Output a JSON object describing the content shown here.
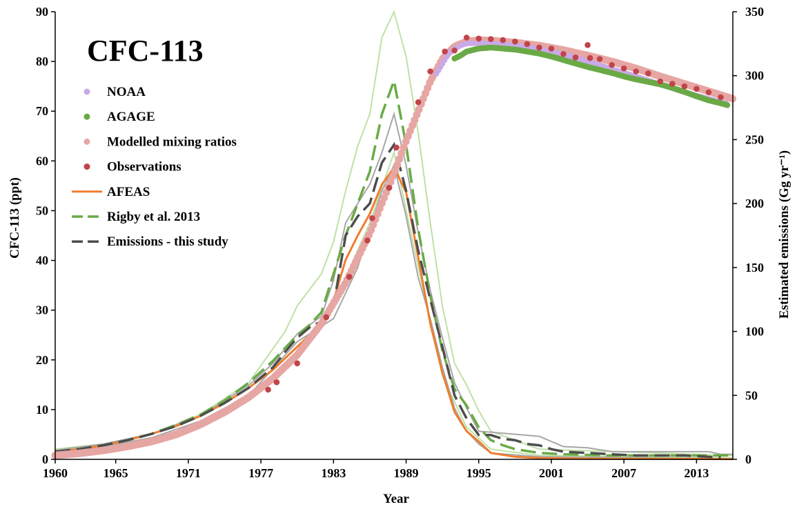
{
  "chart_data": {
    "type": "line",
    "title": "CFC-113",
    "xlabel": "Year",
    "ylabel_left": "CFC-113 (ppt)",
    "ylabel_right": "Estimated emissions (Gg yr⁻¹)",
    "xlim": [
      1960,
      2016
    ],
    "ylim_left": [
      0,
      90
    ],
    "ylim_right": [
      0,
      350
    ],
    "x_ticks": [
      "1960",
      "1965",
      "1971",
      "1977",
      "1983",
      "1989",
      "1995",
      "2001",
      "2007",
      "2013"
    ],
    "y_left_ticks": [
      "0",
      "10",
      "20",
      "30",
      "40",
      "50",
      "60",
      "70",
      "80",
      "90"
    ],
    "y_right_ticks": [
      "0",
      "50",
      "100",
      "150",
      "200",
      "250",
      "300",
      "350"
    ],
    "grid": false,
    "legend_position": "top-left",
    "legend": [
      {
        "key": "noaa",
        "label": "NOAA"
      },
      {
        "key": "agage",
        "label": "AGAGE"
      },
      {
        "key": "modelled",
        "label": "Modelled mixing ratios"
      },
      {
        "key": "obs",
        "label": "Observations"
      },
      {
        "key": "afeas",
        "label": "AFEAS"
      },
      {
        "key": "rigby",
        "label": "Rigby et al. 2013"
      },
      {
        "key": "this",
        "label": "Emissions - this study"
      }
    ],
    "colors": {
      "noaa": "#c9a9e6",
      "agage": "#6aaa46",
      "modelled": "#e6a6a3",
      "obs": "#c0454a",
      "afeas": "#ef7d2f",
      "rigby": "#6aaa46",
      "rigby_range": "#bfe0a6",
      "this": "#4d4d4d",
      "this_range": "#a6a6a6"
    },
    "series": [
      {
        "key": "modelled",
        "axis": "left",
        "x": [
          1960,
          1962,
          1964,
          1966,
          1968,
          1970,
          1972,
          1974,
          1976,
          1978,
          1980,
          1982,
          1984,
          1986,
          1988,
          1989,
          1990,
          1991,
          1992,
          1993,
          1994,
          1995,
          1996,
          1998,
          2000,
          2002,
          2004,
          2006,
          2008,
          2010,
          2012,
          2014,
          2016
        ],
        "values": [
          0.8,
          1.2,
          1.8,
          2.6,
          3.6,
          5.0,
          7.0,
          9.5,
          12.5,
          16.3,
          21.0,
          27.3,
          35.5,
          45.5,
          57.5,
          64.0,
          70.0,
          76.0,
          80.5,
          83.0,
          84.0,
          84.3,
          84.2,
          83.8,
          83.2,
          82.3,
          81.2,
          80.0,
          78.6,
          77.0,
          75.5,
          74.0,
          72.5
        ]
      },
      {
        "key": "noaa",
        "axis": "left",
        "x": [
          1991.5,
          1992,
          1992.5,
          1993,
          1993.5,
          1994,
          1995,
          1996,
          1998,
          2000,
          2002,
          2004,
          2006,
          2008,
          2010,
          2012,
          2014,
          2015.5
        ],
        "values": [
          77.5,
          79.5,
          81.5,
          82.5,
          83.2,
          83.6,
          83.7,
          83.6,
          83.2,
          82.5,
          81.4,
          80.0,
          78.5,
          77.0,
          75.4,
          73.8,
          72.5,
          71.5
        ]
      },
      {
        "key": "agage",
        "axis": "left",
        "x": [
          1993,
          1993.5,
          1994,
          1995,
          1996,
          1997,
          1998,
          1999,
          2000,
          2001,
          2002,
          2003,
          2004,
          2005,
          2006,
          2007,
          2008,
          2009,
          2010,
          2011,
          2012,
          2013,
          2014,
          2015,
          2015.6
        ],
        "values": [
          80.6,
          81.2,
          82.0,
          82.6,
          82.8,
          82.6,
          82.4,
          82.0,
          81.6,
          81.0,
          80.3,
          79.6,
          78.9,
          78.3,
          77.7,
          77.0,
          76.4,
          75.9,
          75.4,
          74.7,
          73.9,
          73.0,
          72.2,
          71.6,
          71.2
        ]
      },
      {
        "key": "obs",
        "axis": "left",
        "x": [
          1977.6,
          1978.3,
          1980,
          1982.4,
          1984.3,
          1985.8,
          1986.2,
          1987.6,
          1988.2,
          1990,
          1991,
          1992.2,
          1993,
          1994,
          1995,
          1996,
          1997,
          1998,
          1999,
          2000,
          2001,
          2002,
          2003,
          2004,
          2004.2,
          2005,
          2006,
          2007,
          2008,
          2009,
          2010,
          2011,
          2012,
          2013,
          2014,
          2015
        ],
        "values": [
          14,
          15.5,
          19.3,
          28.6,
          36.7,
          44,
          48.5,
          54.6,
          62.7,
          71.8,
          78,
          82,
          82.2,
          84.8,
          84.6,
          84.5,
          84.3,
          84.0,
          83.5,
          82.8,
          82.6,
          81.5,
          80.8,
          83.3,
          80.7,
          80.5,
          79.3,
          78.6,
          78.0,
          77.6,
          76.0,
          75.5,
          75.0,
          74.5,
          73.8,
          72.8
        ]
      },
      {
        "key": "afeas",
        "axis": "right",
        "x": [
          1960,
          1962,
          1964,
          1966,
          1968,
          1970,
          1972,
          1974,
          1976,
          1978,
          1980,
          1981,
          1982,
          1983,
          1984,
          1985,
          1986,
          1987,
          1988,
          1989,
          1990,
          1991,
          1992,
          1993,
          1994,
          1995,
          1996,
          1998,
          2000,
          2004,
          2010,
          2016
        ],
        "values": [
          6,
          8,
          11,
          15,
          20,
          26,
          34,
          44,
          56,
          70,
          88,
          97,
          107,
          124,
          156,
          175,
          192,
          215,
          228,
          209,
          158,
          106,
          68,
          37,
          22,
          14,
          5,
          2,
          1,
          0.5,
          0.3,
          0.2
        ]
      },
      {
        "key": "rigby",
        "axis": "right",
        "x": [
          1960,
          1962,
          1964,
          1966,
          1968,
          1970,
          1972,
          1974,
          1976,
          1978,
          1980,
          1981,
          1982,
          1983,
          1984,
          1985,
          1986,
          1987,
          1988,
          1989,
          1990,
          1991,
          1992,
          1993,
          1994,
          1995,
          1996,
          1997,
          1998,
          2000,
          2002,
          2004,
          2006,
          2008,
          2010,
          2012,
          2014,
          2016
        ],
        "values": [
          6,
          8,
          11,
          15,
          20,
          27,
          35,
          46,
          60,
          77,
          97,
          105,
          115,
          145,
          175,
          200,
          225,
          270,
          296,
          246,
          180,
          128,
          85,
          55,
          42,
          25,
          15,
          11,
          8,
          5,
          4,
          3.5,
          3,
          3,
          3,
          3,
          3,
          3
        ]
      },
      {
        "key": "rigby_low",
        "axis": "right",
        "x": [
          1960,
          1964,
          1968,
          1972,
          1976,
          1980,
          1983,
          1986,
          1988,
          1990,
          1992,
          1994,
          1996,
          2000,
          2016
        ],
        "values": [
          5,
          9,
          16,
          28,
          48,
          80,
          120,
          185,
          240,
          150,
          65,
          25,
          8,
          3,
          1
        ]
      },
      {
        "key": "rigby_high",
        "axis": "right",
        "x": [
          1960,
          1964,
          1968,
          1972,
          1976,
          1979,
          1980,
          1982,
          1983,
          1984,
          1985,
          1986,
          1987,
          1988,
          1989,
          1990,
          1991,
          1992,
          1993,
          1994,
          1995,
          1996,
          2000,
          2016
        ],
        "values": [
          8,
          12,
          20,
          35,
          60,
          100,
          120,
          145,
          170,
          210,
          245,
          270,
          330,
          350,
          315,
          255,
          185,
          120,
          75,
          58,
          38,
          22,
          8,
          3
        ]
      },
      {
        "key": "this",
        "axis": "right",
        "x": [
          1960,
          1962,
          1964,
          1966,
          1968,
          1970,
          1972,
          1974,
          1976,
          1978,
          1979,
          1980,
          1981,
          1982,
          1983,
          1984,
          1985,
          1986,
          1987,
          1988,
          1989,
          1990,
          1991,
          1992,
          1993,
          1994,
          1995,
          1996,
          1997,
          1998,
          1999,
          2000,
          2001,
          2002,
          2004,
          2006,
          2008,
          2010,
          2012,
          2014,
          2015
        ],
        "values": [
          6,
          8,
          11,
          15,
          20,
          26,
          34,
          44,
          56,
          72,
          84,
          95,
          103,
          108,
          120,
          175,
          190,
          200,
          232,
          246,
          210,
          163,
          125,
          88,
          50,
          32,
          19,
          19,
          16,
          15,
          12,
          11,
          8,
          6,
          5,
          4,
          3,
          3,
          3,
          2,
          1.5
        ]
      },
      {
        "key": "this_low",
        "axis": "right",
        "x": [
          1960,
          1964,
          1968,
          1972,
          1976,
          1980,
          1983,
          1985,
          1986,
          1987,
          1988,
          1989,
          1990,
          1991,
          1992,
          1993,
          1994,
          1995,
          1996,
          2000,
          2016
        ],
        "values": [
          5,
          10,
          17,
          30,
          50,
          92,
          110,
          150,
          180,
          210,
          230,
          190,
          142,
          110,
          72,
          40,
          22,
          12,
          5,
          2,
          0.5
        ]
      },
      {
        "key": "this_high",
        "axis": "right",
        "x": [
          1960,
          1964,
          1968,
          1972,
          1976,
          1978,
          1980,
          1982,
          1983,
          1984,
          1985,
          1986,
          1987,
          1988,
          1989,
          1990,
          1991,
          1992,
          1993,
          1994,
          1995,
          2000,
          2002,
          2004,
          2006,
          2008,
          2010,
          2012,
          2014,
          2015,
          2016
        ],
        "values": [
          7,
          12,
          20,
          34,
          58,
          75,
          98,
          112,
          140,
          185,
          200,
          215,
          240,
          270,
          230,
          177,
          132,
          95,
          60,
          40,
          22,
          18,
          10,
          9,
          6,
          6,
          6,
          6,
          6,
          4,
          4
        ]
      }
    ]
  }
}
